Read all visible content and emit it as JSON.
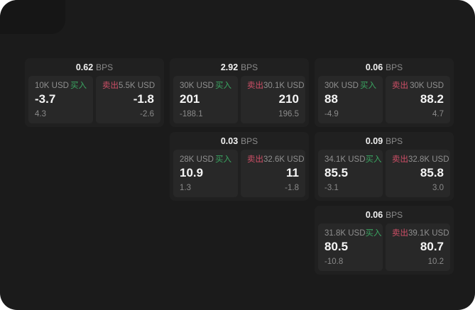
{
  "labels": {
    "buy": "买入",
    "sell": "卖出",
    "bps_unit": "BPS"
  },
  "colors": {
    "panel_bg": "#1b1b1b",
    "card_bg": "#202020",
    "pane_bg": "#282828",
    "buy_green": "#3aa561",
    "sell_red": "#cf4f67",
    "price_text": "#f5f5f5",
    "muted_text": "#8f8f8f"
  },
  "cards": [
    {
      "spread_bps": "0.62",
      "buy": {
        "amount": "10K USD",
        "price": "-3.7",
        "delta": "4.3"
      },
      "sell": {
        "amount": "5.5K USD",
        "price": "-1.8",
        "delta": "-2.6"
      }
    },
    {
      "spread_bps": "2.92",
      "buy": {
        "amount": "30K USD",
        "price": "201",
        "delta": "-188.1"
      },
      "sell": {
        "amount": "30.1K USD",
        "price": "210",
        "delta": "196.5"
      }
    },
    {
      "spread_bps": "0.06",
      "buy": {
        "amount": "30K USD",
        "price": "88",
        "delta": "-4.9"
      },
      "sell": {
        "amount": "30K USD",
        "price": "88.2",
        "delta": "4.7"
      }
    },
    {
      "spread_bps": "0.03",
      "buy": {
        "amount": "28K USD",
        "price": "10.9",
        "delta": "1.3"
      },
      "sell": {
        "amount": "32.6K USD",
        "price": "11",
        "delta": "-1.8"
      }
    },
    {
      "spread_bps": "0.09",
      "buy": {
        "amount": "34.1K USD",
        "price": "85.5",
        "delta": "-3.1"
      },
      "sell": {
        "amount": "32.8K USD",
        "price": "85.8",
        "delta": "3.0"
      }
    },
    {
      "spread_bps": "0.06",
      "buy": {
        "amount": "31.8K USD",
        "price": "80.5",
        "delta": "-10.8"
      },
      "sell": {
        "amount": "39.1K USD",
        "price": "80.7",
        "delta": "10.2"
      }
    }
  ]
}
